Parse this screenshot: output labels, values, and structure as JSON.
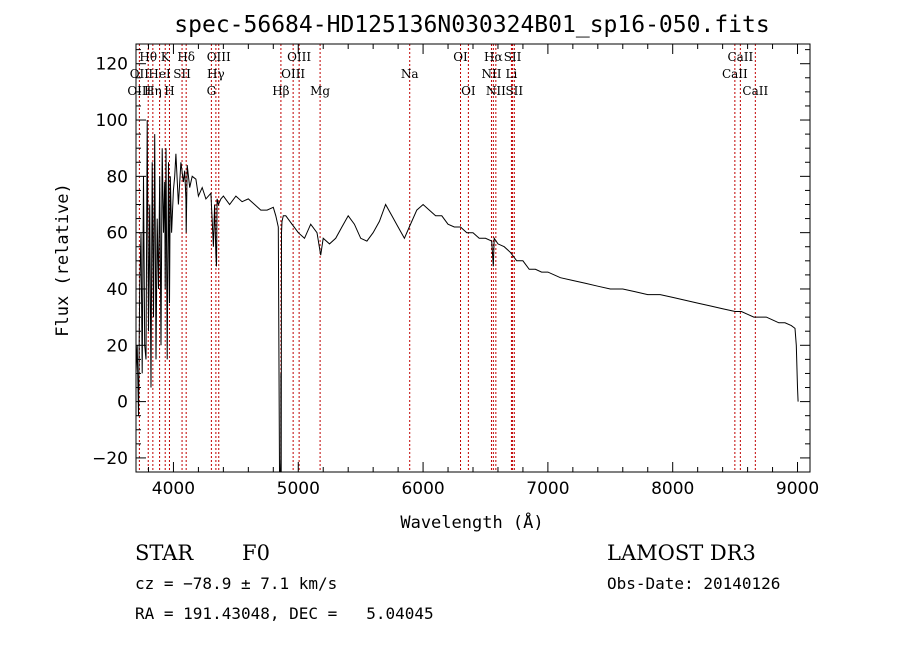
{
  "chart_data": {
    "type": "line",
    "title": "spec-56684-HD125136N030324B01_sp16-050.fits",
    "xlabel": "Wavelength (Å)",
    "ylabel": "Flux (relative)",
    "xlim": [
      3700,
      9100
    ],
    "ylim": [
      -25,
      127
    ],
    "xticks": [
      4000,
      5000,
      6000,
      7000,
      8000,
      9000
    ],
    "yticks": [
      -20,
      0,
      20,
      40,
      60,
      80,
      100,
      120
    ],
    "series": [
      {
        "name": "flux",
        "x": [
          3700,
          3710,
          3720,
          3730,
          3740,
          3750,
          3760,
          3770,
          3780,
          3790,
          3800,
          3810,
          3820,
          3830,
          3840,
          3850,
          3860,
          3870,
          3880,
          3890,
          3900,
          3910,
          3920,
          3930,
          3934,
          3940,
          3950,
          3960,
          3968,
          3975,
          3985,
          4000,
          4010,
          4020,
          4040,
          4060,
          4080,
          4090,
          4100,
          4102,
          4110,
          4130,
          4150,
          4180,
          4200,
          4230,
          4260,
          4300,
          4320,
          4330,
          4340,
          4345,
          4350,
          4360,
          4380,
          4400,
          4450,
          4500,
          4550,
          4600,
          4650,
          4700,
          4750,
          4800,
          4820,
          4840,
          4850,
          4855,
          4860,
          4861,
          4863,
          4866,
          4870,
          4880,
          4900,
          4950,
          5000,
          5050,
          5100,
          5150,
          5180,
          5200,
          5250,
          5300,
          5350,
          5400,
          5450,
          5500,
          5550,
          5600,
          5650,
          5700,
          5750,
          5800,
          5850,
          5890,
          5950,
          6000,
          6050,
          6100,
          6150,
          6200,
          6250,
          6300,
          6350,
          6400,
          6450,
          6500,
          6550,
          6563,
          6570,
          6600,
          6650,
          6700,
          6750,
          6800,
          6850,
          6900,
          6950,
          7000,
          7100,
          7200,
          7300,
          7400,
          7500,
          7600,
          7700,
          7800,
          7900,
          8000,
          8100,
          8200,
          8300,
          8400,
          8500,
          8550,
          8600,
          8650,
          8700,
          8750,
          8800,
          8850,
          8900,
          8950,
          8980,
          8990,
          9000,
          9005
        ],
        "values": [
          10,
          20,
          -5,
          40,
          60,
          10,
          80,
          20,
          15,
          100,
          25,
          70,
          5,
          85,
          30,
          95,
          15,
          65,
          40,
          80,
          20,
          90,
          60,
          78,
          40,
          90,
          15,
          85,
          35,
          80,
          60,
          75,
          80,
          88,
          70,
          85,
          78,
          82,
          72,
          60,
          84,
          76,
          80,
          79,
          73,
          76,
          72,
          74,
          55,
          70,
          52,
          48,
          72,
          70,
          72,
          73,
          70,
          73,
          71,
          72,
          70,
          68,
          68,
          69,
          66,
          62,
          -25,
          -28,
          -20,
          10,
          -28,
          60,
          64,
          66,
          66,
          63,
          60,
          58,
          63,
          60,
          52,
          58,
          56,
          58,
          62,
          66,
          63,
          58,
          57,
          60,
          64,
          70,
          66,
          62,
          58,
          62,
          68,
          70,
          68,
          66,
          66,
          63,
          62,
          62,
          60,
          60,
          58,
          58,
          57,
          48,
          58,
          56,
          55,
          53,
          50,
          50,
          47,
          47,
          46,
          46,
          44,
          43,
          42,
          41,
          40,
          40,
          39,
          38,
          38,
          37,
          36,
          35,
          34,
          33,
          32,
          32,
          31,
          30,
          30,
          30,
          29,
          28,
          28,
          27,
          26,
          20,
          5,
          0
        ]
      }
    ],
    "spectral_lines": [
      {
        "label": "Hθ",
        "x": 3798,
        "row": 1
      },
      {
        "label": "K",
        "x": 3934,
        "row": 1
      },
      {
        "label": "Hδ",
        "x": 4102,
        "row": 1
      },
      {
        "label": "OIII",
        "x": 4363,
        "row": 1
      },
      {
        "label": "OIII",
        "x": 5007,
        "row": 1
      },
      {
        "label": "OI",
        "x": 6300,
        "row": 1
      },
      {
        "label": "Hα",
        "x": 6563,
        "row": 1
      },
      {
        "label": "SII",
        "x": 6717,
        "row": 1
      },
      {
        "label": "CaII",
        "x": 8542,
        "row": 1
      },
      {
        "label": "OII",
        "x": 3727,
        "row": 2
      },
      {
        "label": "HeI",
        "x": 3889,
        "row": 2
      },
      {
        "label": "SII",
        "x": 4069,
        "row": 2
      },
      {
        "label": "Hγ",
        "x": 4340,
        "row": 2
      },
      {
        "label": "OIII",
        "x": 4959,
        "row": 2
      },
      {
        "label": "Na",
        "x": 5893,
        "row": 2
      },
      {
        "label": "NII",
        "x": 6548,
        "row": 2
      },
      {
        "label": "Li",
        "x": 6708,
        "row": 2
      },
      {
        "label": "CaII",
        "x": 8498,
        "row": 2
      },
      {
        "label": "OIII",
        "x": 3727,
        "row": 3
      },
      {
        "label": "Hη",
        "x": 3835,
        "row": 3
      },
      {
        "label": "H",
        "x": 3968,
        "row": 3
      },
      {
        "label": "G",
        "x": 4304,
        "row": 3
      },
      {
        "label": "Hβ",
        "x": 4861,
        "row": 3
      },
      {
        "label": "Mg",
        "x": 5175,
        "row": 3
      },
      {
        "label": "OI",
        "x": 6363,
        "row": 3
      },
      {
        "label": "NII",
        "x": 6583,
        "row": 3
      },
      {
        "label": "SII",
        "x": 6731,
        "row": 3
      },
      {
        "label": "CaII",
        "x": 8662,
        "row": 3
      }
    ]
  },
  "info": {
    "object_class": "STAR",
    "subclass": "F0",
    "survey": "LAMOST DR3",
    "redshift": "cz = −78.9 ± 7.1 km/s",
    "obs_date": "Obs-Date: 20140126",
    "coords": "RA = 191.43048, DEC =   5.04045"
  }
}
